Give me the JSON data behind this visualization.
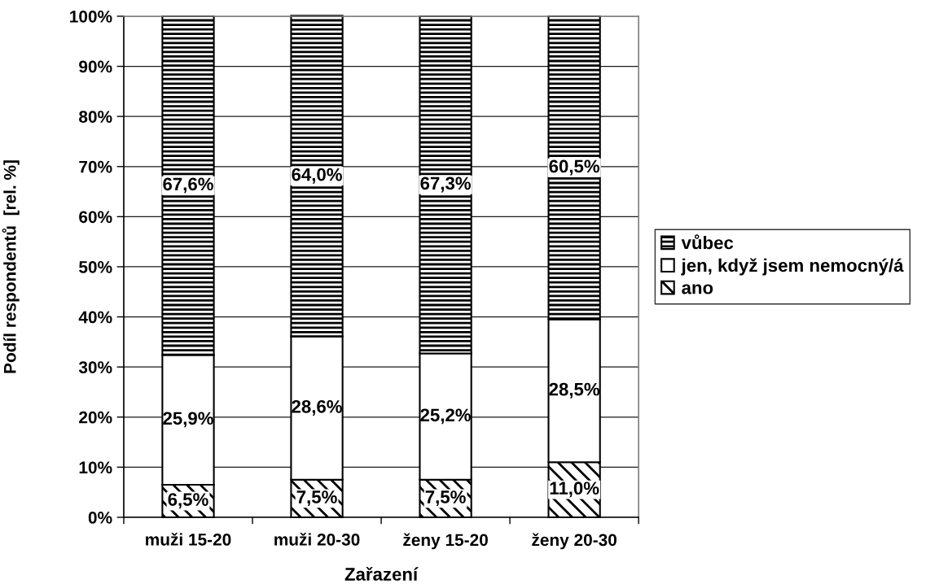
{
  "chart_data": {
    "type": "bar",
    "stacked": true,
    "categories": [
      "muži 15-20",
      "muži 20-30",
      "ženy 15-20",
      "ženy 20-30"
    ],
    "series": [
      {
        "name": "ano",
        "color": "#000000",
        "values": [
          6.5,
          7.5,
          7.5,
          11.0
        ],
        "value_labels": [
          "6,5%",
          "7,5%",
          "7,5%",
          "11,0%"
        ]
      },
      {
        "name": "jen, když jsem nemocný/á",
        "color": "#ffffff",
        "values": [
          25.9,
          28.6,
          25.2,
          28.5
        ],
        "value_labels": [
          "25,9%",
          "28,6%",
          "25,2%",
          "28,5%"
        ]
      },
      {
        "name": "vůbec",
        "color": "#000000",
        "values": [
          67.6,
          64.0,
          67.3,
          60.5
        ],
        "value_labels": [
          "67,6%",
          "64,0%",
          "67,3%",
          "60,5%"
        ]
      }
    ],
    "xlabel": "Zařazení",
    "ylabel": "Podíl respondentů  [rel. %]",
    "ylim": [
      0,
      100
    ],
    "yticks": [
      {
        "value": 0,
        "label": "0%"
      },
      {
        "value": 10,
        "label": "10%"
      },
      {
        "value": 20,
        "label": "20%"
      },
      {
        "value": 30,
        "label": "30%"
      },
      {
        "value": 40,
        "label": "40%"
      },
      {
        "value": 50,
        "label": "50%"
      },
      {
        "value": 60,
        "label": "60%"
      },
      {
        "value": 70,
        "label": "70%"
      },
      {
        "value": 80,
        "label": "80%"
      },
      {
        "value": 90,
        "label": "90%"
      },
      {
        "value": 100,
        "label": "100%"
      }
    ],
    "grid": "y",
    "legend": "right"
  }
}
